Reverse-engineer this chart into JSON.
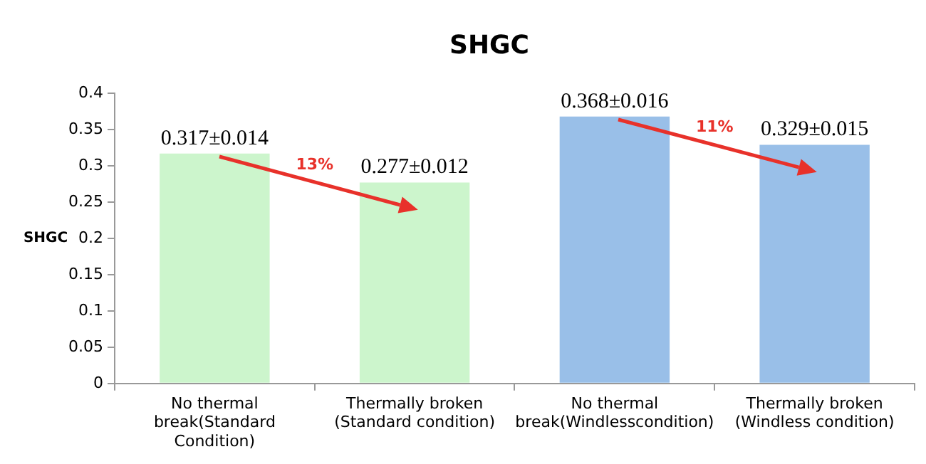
{
  "chart_data": {
    "type": "bar",
    "title": "SHGC",
    "ylabel": "SHGC",
    "categories": [
      "No thermal break(Standard Condition)",
      "Thermally broken (Standard condition)",
      "No thermal break(Windlesscondition)",
      "Thermally broken (Windless condition)"
    ],
    "values": [
      0.317,
      0.277,
      0.368,
      0.329
    ],
    "colors": [
      "#ccf5cc",
      "#ccf5cc",
      "#99bfe8",
      "#99bfe8"
    ],
    "value_labels": [
      "0.317±0.014",
      "0.277±0.012",
      "0.368±0.016",
      "0.329±0.015"
    ],
    "annotations": [
      "13%",
      "11%"
    ],
    "ylim": [
      0,
      0.4
    ],
    "yticks": [
      0,
      0.05,
      0.1,
      0.15,
      0.2,
      0.25,
      0.3,
      0.35,
      0.4
    ],
    "grid": false,
    "legend": false
  }
}
